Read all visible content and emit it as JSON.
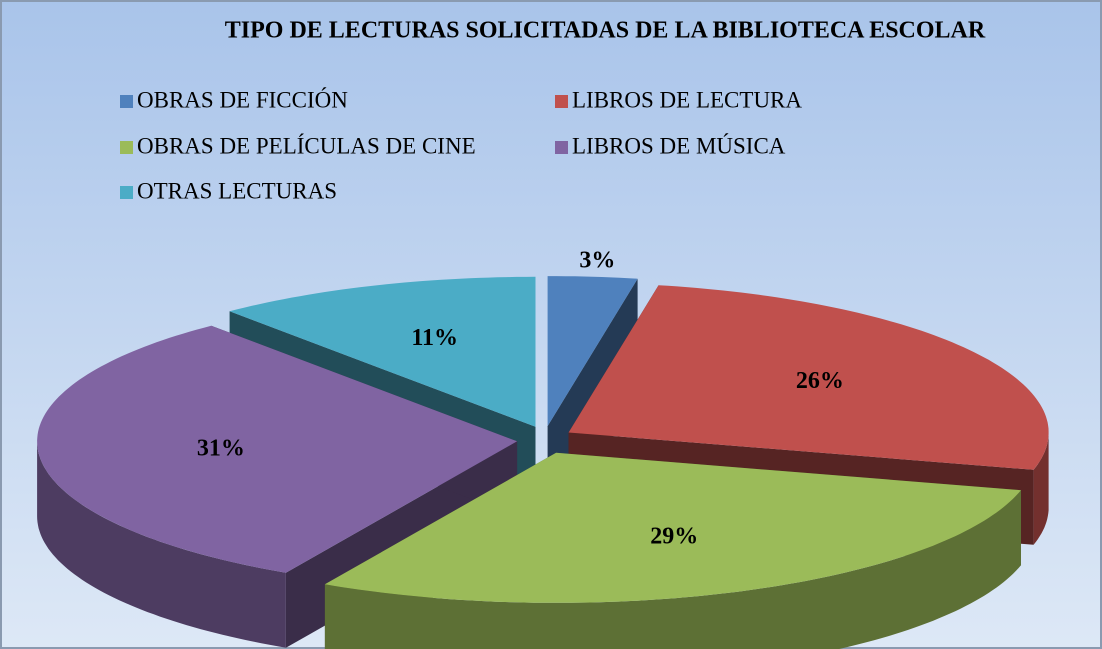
{
  "chart_data": {
    "type": "pie",
    "title": "TIPO DE LECTURAS SOLICITADAS DE LA BIBLIOTECA ESCOLAR",
    "categories": [
      "OBRAS DE FICCIÓN",
      "LIBROS DE LECTURA",
      "OBRAS DE PELÍCULAS DE CINE",
      "LIBROS DE MÚSICA",
      "OTRAS LECTURAS"
    ],
    "values": [
      3,
      26,
      29,
      31,
      11
    ],
    "value_labels": [
      "3%",
      "26%",
      "29%",
      "31%",
      "11%"
    ],
    "colors": [
      "#4f81bd",
      "#c0504d",
      "#9bbb59",
      "#8064a2",
      "#4bacc6"
    ],
    "legend": "top"
  }
}
